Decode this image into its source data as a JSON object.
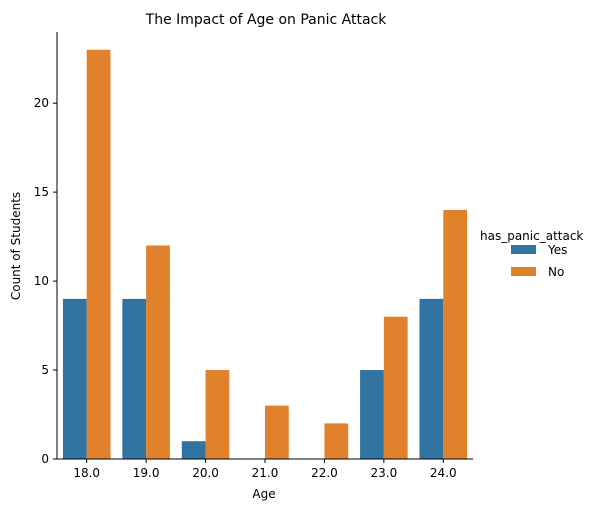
{
  "chart_data": {
    "type": "bar",
    "title": "The Impact of Age on Panic Attack",
    "xlabel": "Age",
    "ylabel": "Count of Students",
    "categories": [
      "18.0",
      "19.0",
      "20.0",
      "21.0",
      "22.0",
      "23.0",
      "24.0"
    ],
    "series": [
      {
        "name": "Yes",
        "values": [
          9,
          9,
          1,
          0,
          0,
          5,
          9
        ],
        "color": "#3274a1"
      },
      {
        "name": "No",
        "values": [
          23,
          12,
          5,
          3,
          2,
          8,
          14
        ],
        "color": "#e1812c"
      }
    ],
    "ylim": [
      0,
      24
    ],
    "yticks": [
      0,
      5,
      10,
      15,
      20
    ],
    "legend": {
      "title": "has_panic_attack",
      "placement": "right"
    },
    "grid": false
  }
}
